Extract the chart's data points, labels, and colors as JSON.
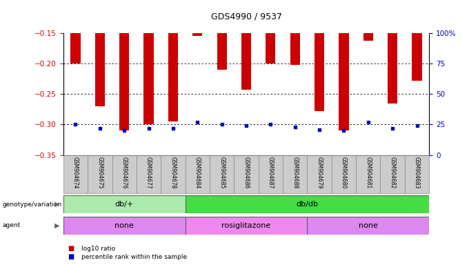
{
  "title": "GDS4990 / 9537",
  "samples": [
    "GSM904674",
    "GSM904675",
    "GSM904676",
    "GSM904677",
    "GSM904678",
    "GSM904684",
    "GSM904685",
    "GSM904686",
    "GSM904687",
    "GSM904688",
    "GSM904679",
    "GSM904680",
    "GSM904681",
    "GSM904682",
    "GSM904683"
  ],
  "log10_ratio": [
    -0.2,
    -0.27,
    -0.31,
    -0.3,
    -0.295,
    -0.155,
    -0.21,
    -0.243,
    -0.2,
    -0.202,
    -0.278,
    -0.31,
    -0.163,
    -0.265,
    -0.228
  ],
  "percentile_rank": [
    25,
    22,
    20,
    22,
    22,
    27,
    25,
    24,
    25,
    23,
    21,
    20,
    27,
    22,
    24
  ],
  "ylim_left": [
    -0.35,
    -0.15
  ],
  "ylim_right": [
    0,
    100
  ],
  "yticks_left": [
    -0.35,
    -0.3,
    -0.25,
    -0.2,
    -0.15
  ],
  "yticks_right": [
    0,
    25,
    50,
    75,
    100
  ],
  "ytick_labels_right": [
    "0",
    "25",
    "50",
    "75",
    "100%"
  ],
  "hlines": [
    -0.2,
    -0.25,
    -0.3
  ],
  "bar_color": "#cc0000",
  "percentile_color": "#0000bb",
  "tick_label_color_left": "#cc0000",
  "tick_label_color_right": "#0000bb",
  "genotype_groups": [
    {
      "label": "db/+",
      "start": 0,
      "end": 5,
      "color": "#aaeaaa"
    },
    {
      "label": "db/db",
      "start": 5,
      "end": 15,
      "color": "#44dd44"
    }
  ],
  "agent_groups": [
    {
      "label": "none",
      "start": 0,
      "end": 5,
      "color": "#dd88ee"
    },
    {
      "label": "rosiglitazone",
      "start": 5,
      "end": 10,
      "color": "#ee88ee"
    },
    {
      "label": "none",
      "start": 10,
      "end": 15,
      "color": "#dd88ee"
    }
  ],
  "legend_items": [
    {
      "color": "#cc0000",
      "label": "log10 ratio"
    },
    {
      "color": "#0000bb",
      "label": "percentile rank within the sample"
    }
  ],
  "bg_color": "#ffffff",
  "sample_cell_color": "#cccccc",
  "bar_width": 0.4
}
